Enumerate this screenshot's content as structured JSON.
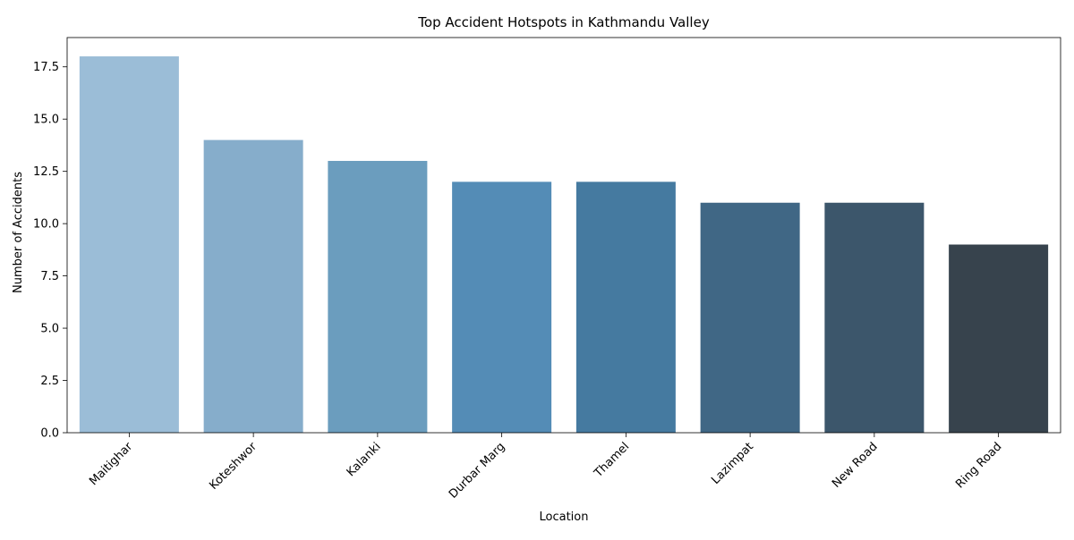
{
  "chart_data": {
    "type": "bar",
    "title": "Top Accident Hotspots in Kathmandu Valley",
    "xlabel": "Location",
    "ylabel": "Number of Accidents",
    "categories": [
      "Maitighar",
      "Koteshwor",
      "Kalanki",
      "Durbar Marg",
      "Thamel",
      "Lazimpat",
      "New Road",
      "Ring Road"
    ],
    "values": [
      18,
      14,
      13,
      12,
      12,
      11,
      11,
      9
    ],
    "colors": [
      "#9bbdd7",
      "#86adcb",
      "#6b9dbe",
      "#548cb6",
      "#457aa0",
      "#406785",
      "#3c566b",
      "#37434d"
    ],
    "ylim": [
      0,
      18.9
    ],
    "yticks": [
      0.0,
      2.5,
      5.0,
      7.5,
      10.0,
      12.5,
      15.0,
      17.5
    ],
    "ytick_labels": [
      "0.0",
      "2.5",
      "5.0",
      "7.5",
      "10.0",
      "12.5",
      "15.0",
      "17.5"
    ],
    "grid": false,
    "legend": "none",
    "xtick_rotation_deg": 45
  }
}
